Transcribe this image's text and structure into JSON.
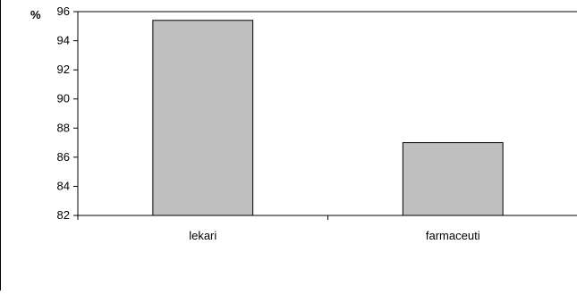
{
  "chart_data": {
    "type": "bar",
    "title": "",
    "xlabel": "",
    "ylabel": "%",
    "categories": [
      "lekari",
      "farmaceuti"
    ],
    "values": [
      95.4,
      87.0
    ],
    "ylim": [
      82,
      96
    ],
    "yticks": [
      82,
      84,
      86,
      88,
      90,
      92,
      94,
      96
    ],
    "grid": false,
    "legend": "none",
    "bar_color": "#c0c0c0",
    "bar_edge_color": "#000000"
  }
}
